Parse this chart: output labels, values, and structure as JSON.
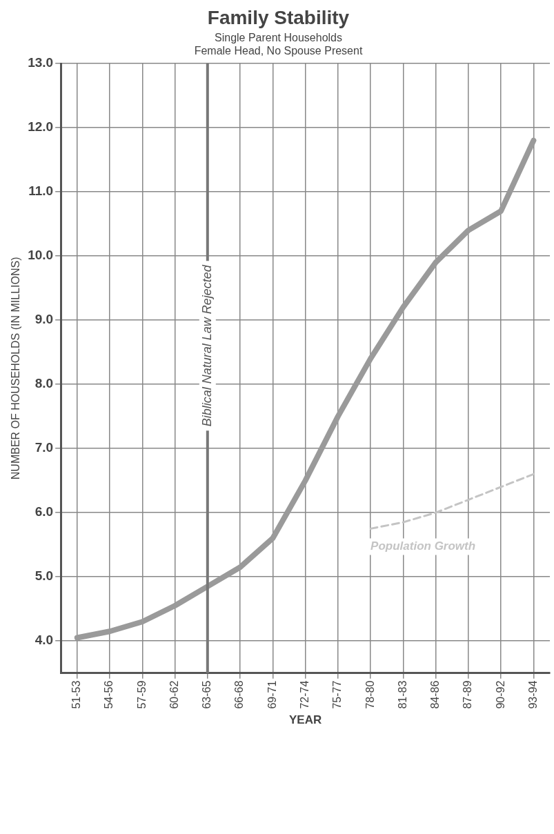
{
  "chart_data": {
    "type": "line",
    "title": "Family Stability",
    "subtitle": "Single Parent Households\nFemale Head, No Spouse Present",
    "xlabel": "YEAR",
    "ylabel": "NUMBER OF HOUSEHOLDS (IN MILLIONS)",
    "categories": [
      "51-53",
      "54-56",
      "57-59",
      "60-62",
      "63-65",
      "66-68",
      "69-71",
      "72-74",
      "75-77",
      "78-80",
      "81-83",
      "84-86",
      "87-89",
      "90-92",
      "93-94"
    ],
    "series": [
      {
        "color": "#9a9a9a",
        "values": [
          4.05,
          4.15,
          4.3,
          4.55,
          4.85,
          5.15,
          5.6,
          6.5,
          7.5,
          8.4,
          9.2,
          9.9,
          10.4,
          10.7,
          11.8
        ]
      },
      {
        "name": "Population Growth",
        "color": "#c4c4c4",
        "line_style": "dashed",
        "values": [
          null,
          null,
          null,
          null,
          null,
          null,
          null,
          null,
          null,
          5.75,
          5.85,
          6.0,
          6.2,
          6.4,
          6.6
        ]
      }
    ],
    "ylim": [
      3.5,
      13
    ],
    "yticks": [
      {
        "value": 4,
        "label": "4.0"
      },
      {
        "value": 5,
        "label": "5.0"
      },
      {
        "value": 6,
        "label": "6.0"
      },
      {
        "value": 7,
        "label": "7.0"
      },
      {
        "value": 8,
        "label": "8.0"
      },
      {
        "value": 9,
        "label": "9.0"
      },
      {
        "value": 10,
        "label": "10.0"
      },
      {
        "value": 11,
        "label": "11.0"
      },
      {
        "value": 12,
        "label": "12.0"
      },
      {
        "value": 13,
        "label": "13.0"
      }
    ],
    "grid": true,
    "legend": false,
    "marker": "none",
    "line_style": "solid",
    "ref_lines": [
      {
        "axis": "x",
        "value": "63-65",
        "label": "Biblical Natural Law Rejected",
        "color": "#777777"
      }
    ]
  }
}
